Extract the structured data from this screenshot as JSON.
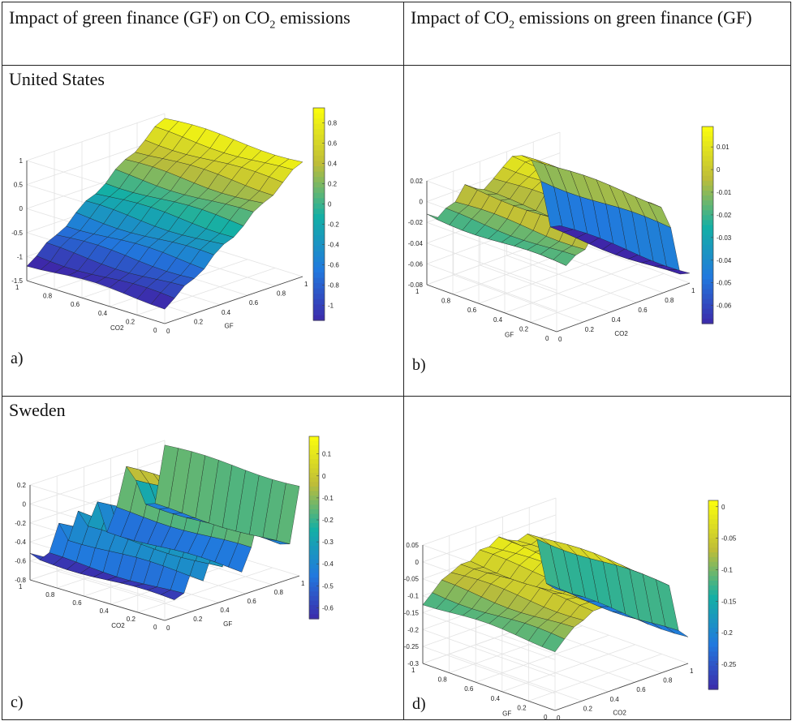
{
  "header": {
    "left_pre": "Impact of green finance (GF) on CO",
    "left_sub": "2",
    "left_post": " emissions",
    "right_pre": "Impact of CO",
    "right_sub": "2",
    "right_post": " emissions on green finance (GF)"
  },
  "rows": [
    {
      "country": "United States"
    },
    {
      "country": "Sweden"
    }
  ],
  "chart_data": [
    {
      "panel": "a)",
      "type": "surface",
      "x_label": "GF",
      "y_label": "CO2",
      "x_ticks": [
        "0",
        "0.2",
        "0.4",
        "0.6",
        "0.8",
        "1"
      ],
      "y_ticks": [
        "0",
        "0.2",
        "0.4",
        "0.6",
        "0.8",
        "1"
      ],
      "z_ticks": [
        "1",
        "0.5",
        "0",
        "-0.5",
        "-1",
        "-1.5"
      ],
      "zlim": [
        -1.5,
        1
      ],
      "colorbar": {
        "ticks": [
          "0.8",
          "0.6",
          "0.4",
          "0.2",
          "0",
          "-0.2",
          "-0.4",
          "-0.6",
          "-0.8",
          "-1"
        ],
        "range": [
          -1.15,
          0.95
        ]
      },
      "profile": [
        0.9,
        0.75,
        0.6,
        0.45,
        0.3,
        0.15,
        0.0,
        -0.15,
        -0.3,
        -0.45,
        -0.6,
        -0.75,
        -0.9,
        -1.05,
        -1.15
      ]
    },
    {
      "panel": "b)",
      "type": "surface",
      "x_label": "CO2",
      "y_label": "GF",
      "x_ticks": [
        "0",
        "0.2",
        "0.4",
        "0.6",
        "0.8",
        "1"
      ],
      "y_ticks": [
        "0",
        "0.2",
        "0.4",
        "0.6",
        "0.8",
        "1"
      ],
      "z_ticks": [
        "0.02",
        "0",
        "-0.02",
        "-0.04",
        "-0.06",
        "-0.08"
      ],
      "zlim": [
        -0.08,
        0.02
      ],
      "colorbar": {
        "ticks": [
          "0.01",
          "0",
          "-0.01",
          "-0.02",
          "-0.03",
          "-0.04",
          "-0.05",
          "-0.06"
        ],
        "range": [
          -0.068,
          0.019
        ]
      },
      "profile": [
        -0.07,
        -0.07,
        -0.02,
        0.005,
        0.01,
        0.012,
        0.008,
        0.0,
        -0.01,
        -0.005,
        0.005,
        -0.01,
        -0.015,
        -0.02,
        -0.01
      ]
    },
    {
      "panel": "c)",
      "type": "surface",
      "x_label": "GF",
      "y_label": "CO2",
      "x_ticks": [
        "0",
        "0.2",
        "0.4",
        "0.6",
        "0.8",
        "1"
      ],
      "y_ticks": [
        "0",
        "0.2",
        "0.4",
        "0.6",
        "0.8",
        "1"
      ],
      "z_ticks": [
        "0.2",
        "0",
        "-0.2",
        "-0.4",
        "-0.6",
        "-0.8"
      ],
      "zlim": [
        -0.8,
        0.2
      ],
      "colorbar": {
        "ticks": [
          "0.1",
          "0",
          "-0.1",
          "-0.2",
          "-0.3",
          "-0.4",
          "-0.5",
          "-0.6"
        ],
        "range": [
          -0.65,
          0.18
        ]
      },
      "profile": [
        0.15,
        -0.45,
        -0.4,
        -0.1,
        0.05,
        -0.35,
        -0.55,
        -0.2,
        -0.45,
        -0.25,
        -0.5,
        -0.3,
        -0.6,
        -0.62,
        -0.5
      ]
    },
    {
      "panel": "d)",
      "type": "surface",
      "x_label": "CO2",
      "y_label": "GF",
      "x_ticks": [
        "0",
        "0.2",
        "0.4",
        "0.6",
        "0.8",
        "1"
      ],
      "y_ticks": [
        "0",
        "0.2",
        "0.4",
        "0.6",
        "0.8",
        "1"
      ],
      "z_ticks": [
        "0.05",
        "0",
        "-0.05",
        "-0.1",
        "-0.15",
        "-0.2",
        "-0.25",
        "-0.3"
      ],
      "zlim": [
        -0.3,
        0.05
      ],
      "colorbar": {
        "ticks": [
          "0",
          "-0.05",
          "-0.1",
          "-0.15",
          "-0.2",
          "-0.25"
        ],
        "range": [
          -0.29,
          0.01
        ]
      },
      "profile": [
        -0.22,
        -0.2,
        -0.05,
        -0.02,
        -0.04,
        -0.03,
        0.0,
        -0.02,
        -0.03,
        -0.05,
        -0.04,
        -0.06,
        -0.08,
        -0.1,
        -0.12
      ]
    }
  ]
}
